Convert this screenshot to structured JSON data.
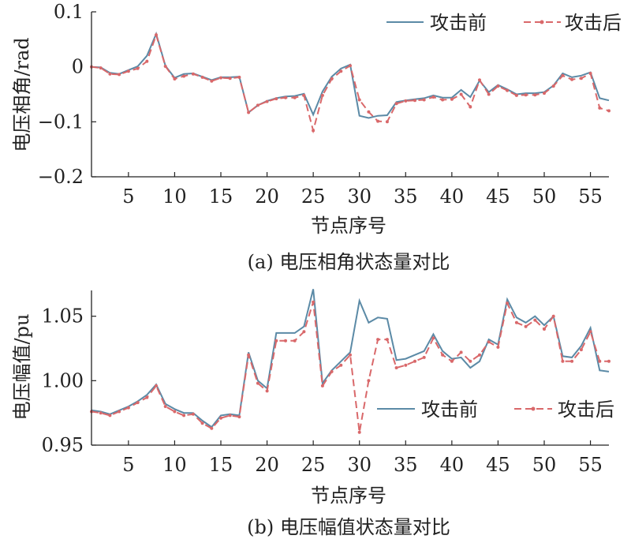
{
  "figure": {
    "panel_a_caption": "(a) 电压相角状态量对比",
    "panel_b_caption": "(b) 电压幅值状态量对比"
  },
  "chart_data": [
    {
      "type": "line",
      "title": "(a) 电压相角状态量对比",
      "xlabel": "节点序号",
      "ylabel": "电压相角/rad",
      "xlim": [
        1,
        57
      ],
      "ylim": [
        -0.2,
        0.1
      ],
      "xticks": [
        "5",
        "10",
        "15",
        "20",
        "25",
        "30",
        "35",
        "40",
        "45",
        "50",
        "55"
      ],
      "yticks": [
        "0.1",
        "0",
        "−0.1",
        "−0.2"
      ],
      "legend_position": "top-right",
      "grid": false,
      "x": [
        1,
        2,
        3,
        4,
        5,
        6,
        7,
        8,
        9,
        10,
        11,
        12,
        13,
        14,
        15,
        16,
        17,
        18,
        19,
        20,
        21,
        22,
        23,
        24,
        25,
        26,
        27,
        28,
        29,
        30,
        31,
        32,
        33,
        34,
        35,
        36,
        37,
        38,
        39,
        40,
        41,
        42,
        43,
        44,
        45,
        46,
        47,
        48,
        49,
        50,
        51,
        52,
        53,
        54,
        55,
        56,
        57
      ],
      "series": [
        {
          "name": "攻击前",
          "color": "#5b8aa6",
          "values": [
            0,
            -0.001,
            -0.011,
            -0.013,
            -0.006,
            0.001,
            0.02,
            0.06,
            0.002,
            -0.02,
            -0.013,
            -0.012,
            -0.018,
            -0.024,
            -0.019,
            -0.019,
            -0.018,
            -0.083,
            -0.07,
            -0.062,
            -0.057,
            -0.054,
            -0.053,
            -0.049,
            -0.087,
            -0.045,
            -0.018,
            -0.003,
            0.004,
            -0.089,
            -0.093,
            -0.089,
            -0.088,
            -0.064,
            -0.061,
            -0.059,
            -0.057,
            -0.052,
            -0.056,
            -0.056,
            -0.042,
            -0.055,
            -0.025,
            -0.046,
            -0.033,
            -0.041,
            -0.05,
            -0.048,
            -0.048,
            -0.046,
            -0.034,
            -0.012,
            -0.019,
            -0.016,
            -0.01,
            -0.057,
            -0.061
          ]
        },
        {
          "name": "攻击后",
          "color": "#d9686a",
          "values": [
            0,
            -0.002,
            -0.013,
            -0.014,
            -0.008,
            -0.003,
            0.01,
            0.058,
            0.001,
            -0.022,
            -0.017,
            -0.013,
            -0.019,
            -0.026,
            -0.02,
            -0.021,
            -0.019,
            -0.083,
            -0.07,
            -0.063,
            -0.058,
            -0.056,
            -0.056,
            -0.052,
            -0.116,
            -0.052,
            -0.022,
            -0.008,
            0.002,
            -0.06,
            -0.082,
            -0.099,
            -0.1,
            -0.067,
            -0.062,
            -0.061,
            -0.06,
            -0.055,
            -0.06,
            -0.059,
            -0.05,
            -0.073,
            -0.024,
            -0.05,
            -0.035,
            -0.043,
            -0.052,
            -0.051,
            -0.051,
            -0.048,
            -0.035,
            -0.016,
            -0.023,
            -0.021,
            -0.012,
            -0.075,
            -0.08
          ]
        }
      ]
    },
    {
      "type": "line",
      "title": "(b) 电压幅值状态量对比",
      "xlabel": "节点序号",
      "ylabel": "电压幅值/pu",
      "xlim": [
        1,
        57
      ],
      "ylim": [
        0.95,
        1.07
      ],
      "xticks": [
        "5",
        "10",
        "15",
        "20",
        "25",
        "30",
        "35",
        "40",
        "45",
        "50",
        "55"
      ],
      "yticks": [
        "1.05",
        "1.00",
        "0.95"
      ],
      "legend_position": "center-right",
      "grid": false,
      "x": [
        1,
        2,
        3,
        4,
        5,
        6,
        7,
        8,
        9,
        10,
        11,
        12,
        13,
        14,
        15,
        16,
        17,
        18,
        19,
        20,
        21,
        22,
        23,
        24,
        25,
        26,
        27,
        28,
        29,
        30,
        31,
        32,
        33,
        34,
        35,
        36,
        37,
        38,
        39,
        40,
        41,
        42,
        43,
        44,
        45,
        46,
        47,
        48,
        49,
        50,
        51,
        52,
        53,
        54,
        55,
        56,
        57
      ],
      "series": [
        {
          "name": "攻击前",
          "color": "#5b8aa6",
          "values": [
            0.977,
            0.976,
            0.974,
            0.977,
            0.98,
            0.984,
            0.989,
            0.997,
            0.982,
            0.978,
            0.975,
            0.975,
            0.969,
            0.964,
            0.973,
            0.974,
            0.973,
            1.022,
            1.0,
            0.994,
            1.037,
            1.037,
            1.037,
            1.042,
            1.071,
            0.998,
            1.008,
            1.015,
            1.022,
            1.062,
            1.045,
            1.049,
            1.048,
            1.016,
            1.017,
            1.02,
            1.023,
            1.036,
            1.023,
            1.017,
            1.018,
            1.01,
            1.015,
            1.032,
            1.028,
            1.063,
            1.049,
            1.045,
            1.05,
            1.043,
            1.05,
            1.019,
            1.018,
            1.027,
            1.041,
            1.008,
            1.007
          ]
        },
        {
          "name": "攻击后",
          "color": "#d9686a",
          "values": [
            0.976,
            0.975,
            0.973,
            0.976,
            0.979,
            0.983,
            0.987,
            0.996,
            0.98,
            0.976,
            0.973,
            0.974,
            0.967,
            0.963,
            0.971,
            0.973,
            0.972,
            1.02,
            0.998,
            0.992,
            1.031,
            1.031,
            1.031,
            1.038,
            1.061,
            0.996,
            1.007,
            1.012,
            1.02,
            0.96,
            1.0,
            1.032,
            1.032,
            1.01,
            1.012,
            1.015,
            1.018,
            1.033,
            1.02,
            1.015,
            1.022,
            1.015,
            1.02,
            1.03,
            1.026,
            1.06,
            1.045,
            1.042,
            1.047,
            1.04,
            1.05,
            1.015,
            1.015,
            1.024,
            1.038,
            1.015,
            1.015
          ]
        }
      ]
    }
  ]
}
